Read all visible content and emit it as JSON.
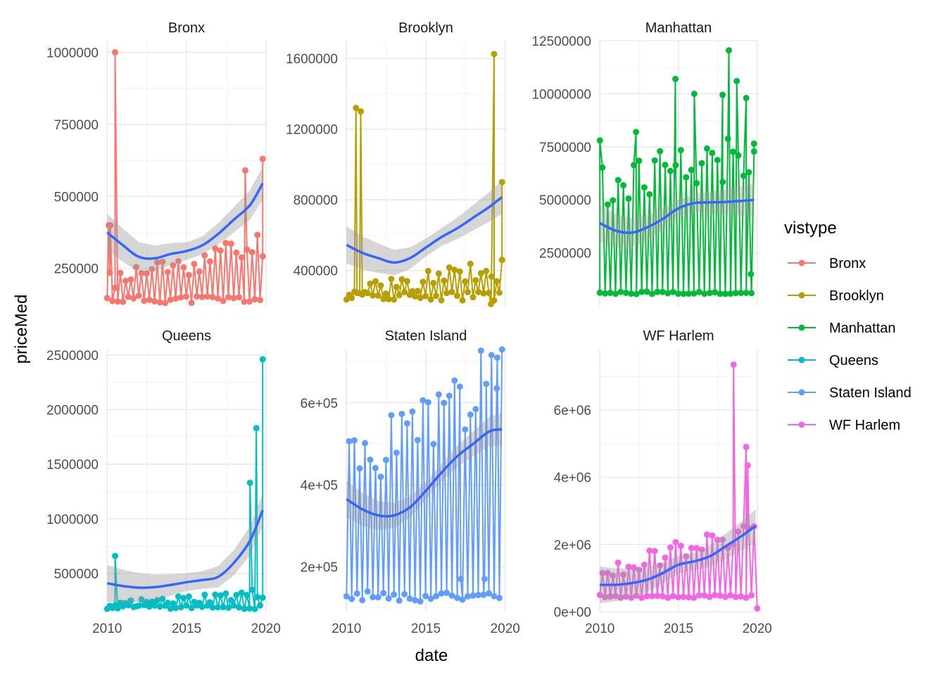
{
  "chart_data": {
    "type": "line",
    "xlabel": "date",
    "ylabel": "priceMed",
    "legend": {
      "title": "vistype",
      "position": "right",
      "items": [
        "Bronx",
        "Brooklyn",
        "Manhattan",
        "Queens",
        "Staten Island",
        "WF Harlem"
      ]
    },
    "grid": true,
    "xlim": [
      2009.9,
      2020.1
    ],
    "x_ticks": [
      "2010",
      "2015",
      "2020"
    ],
    "panels": [
      {
        "name": "Bronx",
        "color": "#F8766D",
        "ylim": [
          120000,
          1040000
        ],
        "y_ticks": [
          250000,
          500000,
          750000,
          1000000
        ],
        "y_tick_labels": [
          "250000",
          "500000",
          "750000",
          "1000000"
        ],
        "level": 140000,
        "trend_start": 200000,
        "trend_end": 320000,
        "spikes": [
          [
            2010.1,
            400000
          ],
          [
            2010.2,
            400000
          ],
          [
            2010.5,
            1000000
          ],
          [
            2018.7,
            590000
          ],
          [
            2019.8,
            630000
          ]
        ],
        "smooth": [
          [
            2010.0,
            375000
          ],
          [
            2011.0,
            330000
          ],
          [
            2012.0,
            290000
          ],
          [
            2013.0,
            285000
          ],
          [
            2014.0,
            300000
          ],
          [
            2015.0,
            310000
          ],
          [
            2016.0,
            330000
          ],
          [
            2017.0,
            370000
          ],
          [
            2018.0,
            420000
          ],
          [
            2019.0,
            470000
          ],
          [
            2019.8,
            545000
          ]
        ]
      },
      {
        "name": "Brooklyn",
        "color": "#B79F00",
        "ylim": [
          200000,
          1700000
        ],
        "y_ticks": [
          400000,
          800000,
          1200000,
          1600000
        ],
        "y_tick_labels": [
          "400000",
          "800000",
          "1200000",
          "1600000"
        ],
        "level": 250000,
        "trend_start": 260000,
        "trend_end": 400000,
        "spikes": [
          [
            2010.6,
            1320000
          ],
          [
            2010.9,
            1300000
          ],
          [
            2019.1,
            210000
          ],
          [
            2019.3,
            1625000
          ],
          [
            2019.8,
            900000
          ]
        ],
        "smooth": [
          [
            2010.0,
            545000
          ],
          [
            2011.0,
            500000
          ],
          [
            2012.0,
            470000
          ],
          [
            2013.0,
            445000
          ],
          [
            2014.0,
            470000
          ],
          [
            2015.0,
            530000
          ],
          [
            2016.0,
            590000
          ],
          [
            2017.0,
            640000
          ],
          [
            2018.0,
            700000
          ],
          [
            2019.0,
            760000
          ],
          [
            2019.8,
            815000
          ]
        ]
      },
      {
        "name": "Manhattan",
        "color": "#00BA38",
        "ylim": [
          0,
          12500000
        ],
        "y_ticks": [
          2500000,
          5000000,
          7500000,
          10000000,
          12500000
        ],
        "y_tick_labels": [
          "2500000",
          "5000000",
          "7500000",
          "10000000",
          "12500000"
        ],
        "level": 600000,
        "trend_start": 5500000,
        "trend_end": 7000000,
        "spikes": [
          [
            2010.0,
            7800000
          ],
          [
            2012.3,
            8200000
          ],
          [
            2014.8,
            10700000
          ],
          [
            2016.0,
            10000000
          ],
          [
            2017.8,
            9950000
          ],
          [
            2018.2,
            12050000
          ],
          [
            2018.7,
            10600000
          ],
          [
            2019.3,
            9800000
          ],
          [
            2019.6,
            1500000
          ],
          [
            2019.8,
            7650000
          ]
        ],
        "smooth": [
          [
            2010.0,
            3900000
          ],
          [
            2011.0,
            3550000
          ],
          [
            2012.0,
            3450000
          ],
          [
            2013.0,
            3700000
          ],
          [
            2014.0,
            4100000
          ],
          [
            2015.0,
            4600000
          ],
          [
            2016.0,
            4850000
          ],
          [
            2017.0,
            4880000
          ],
          [
            2018.0,
            4900000
          ],
          [
            2019.0,
            4950000
          ],
          [
            2019.8,
            5000000
          ]
        ]
      },
      {
        "name": "Queens",
        "color": "#00BFC4",
        "ylim": [
          150000,
          2550000
        ],
        "y_ticks": [
          500000,
          1000000,
          1500000,
          2000000,
          2500000
        ],
        "y_tick_labels": [
          "500000",
          "1000000",
          "1500000",
          "2000000",
          "2500000"
        ],
        "level": 190000,
        "trend_start": 200000,
        "trend_end": 300000,
        "spikes": [
          [
            2010.5,
            660000
          ],
          [
            2019.0,
            1330000
          ],
          [
            2019.4,
            1830000
          ],
          [
            2019.8,
            2460000
          ]
        ],
        "smooth": [
          [
            2010.0,
            410000
          ],
          [
            2011.0,
            385000
          ],
          [
            2012.0,
            370000
          ],
          [
            2013.0,
            375000
          ],
          [
            2014.0,
            395000
          ],
          [
            2015.0,
            420000
          ],
          [
            2016.0,
            440000
          ],
          [
            2017.0,
            470000
          ],
          [
            2018.0,
            600000
          ],
          [
            2019.0,
            800000
          ],
          [
            2019.8,
            1080000
          ]
        ]
      },
      {
        "name": "Staten Island",
        "color": "#619CFF",
        "ylim": [
          90000,
          730000
        ],
        "y_ticks": [
          200000,
          400000,
          600000
        ],
        "y_tick_labels": [
          "2e+05",
          "4e+05",
          "6e+05"
        ],
        "level": 125000,
        "trend_start": 420000,
        "trend_end": 640000,
        "spikes": [
          [
            2017.2,
            170000
          ],
          [
            2018.7,
            170000
          ],
          [
            2019.5,
            710000
          ]
        ],
        "smooth": [
          [
            2010.0,
            365000
          ],
          [
            2011.0,
            340000
          ],
          [
            2012.0,
            325000
          ],
          [
            2013.0,
            325000
          ],
          [
            2014.0,
            345000
          ],
          [
            2015.0,
            385000
          ],
          [
            2016.0,
            430000
          ],
          [
            2017.0,
            470000
          ],
          [
            2018.0,
            500000
          ],
          [
            2019.0,
            530000
          ],
          [
            2019.8,
            535000
          ]
        ]
      },
      {
        "name": "WF Harlem",
        "color": "#F564E3",
        "ylim": [
          0,
          7800000
        ],
        "y_ticks": [
          0,
          2000000,
          4000000,
          6000000
        ],
        "y_tick_labels": [
          "0e+00",
          "2e+06",
          "4e+06",
          "6e+06"
        ],
        "level": 450000,
        "trend_start": 1100000,
        "trend_end": 2400000,
        "spikes": [
          [
            2018.5,
            7350000
          ],
          [
            2019.3,
            4900000
          ],
          [
            2019.4,
            4350000
          ],
          [
            2020.0,
            100000
          ]
        ],
        "smooth": [
          [
            2010.0,
            800000
          ],
          [
            2011.0,
            800000
          ],
          [
            2012.0,
            850000
          ],
          [
            2013.0,
            950000
          ],
          [
            2014.0,
            1150000
          ],
          [
            2015.0,
            1400000
          ],
          [
            2016.0,
            1500000
          ],
          [
            2017.0,
            1650000
          ],
          [
            2018.0,
            1950000
          ],
          [
            2019.0,
            2250000
          ],
          [
            2019.9,
            2550000
          ]
        ]
      }
    ]
  }
}
